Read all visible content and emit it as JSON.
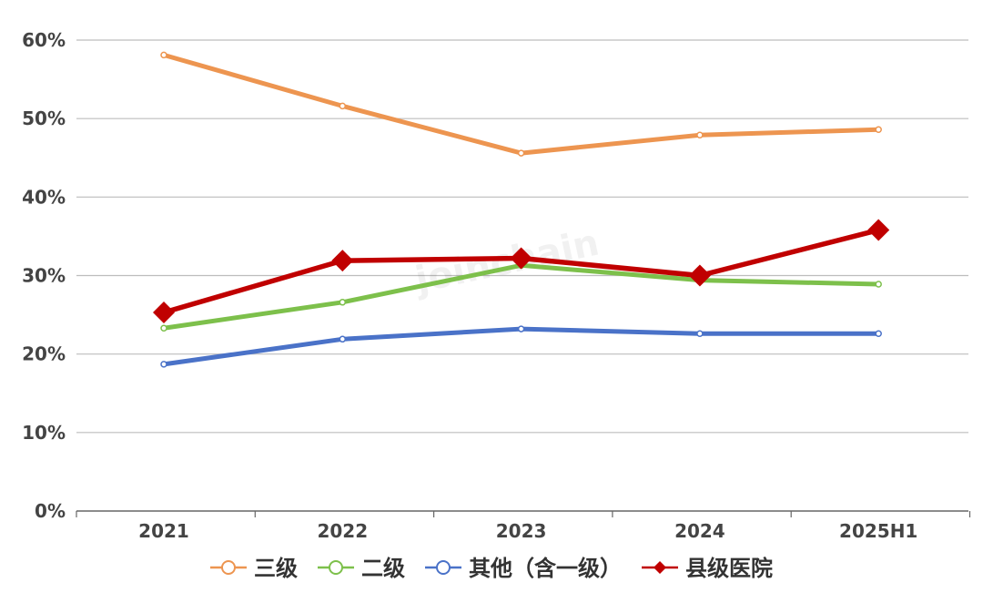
{
  "chart_data": {
    "type": "line",
    "categories": [
      "2021",
      "2022",
      "2023",
      "2024",
      "2025H1"
    ],
    "ylim": [
      0,
      60
    ],
    "y_ticks": [
      "0%",
      "10%",
      "20%",
      "30%",
      "40%",
      "50%",
      "60%"
    ],
    "y_tick_values": [
      0,
      10,
      20,
      30,
      40,
      50,
      60
    ],
    "grid": true,
    "legend_position": "bottom",
    "series": [
      {
        "name": "三级",
        "values": [
          58.1,
          51.6,
          45.6,
          47.9,
          48.6
        ],
        "color": "#ED9550",
        "marker": "circle"
      },
      {
        "name": "二级",
        "values": [
          23.3,
          26.6,
          31.3,
          29.4,
          28.9
        ],
        "color": "#7DC04B",
        "marker": "circle"
      },
      {
        "name": "其他（含一级）",
        "values": [
          18.7,
          21.9,
          23.2,
          22.6,
          22.6
        ],
        "color": "#4A72C8",
        "marker": "circle"
      },
      {
        "name": "县级医院",
        "values": [
          25.3,
          31.9,
          32.2,
          30.0,
          35.8
        ],
        "color": "#C00000",
        "marker": "diamond"
      }
    ]
  },
  "watermark": "joinchain"
}
